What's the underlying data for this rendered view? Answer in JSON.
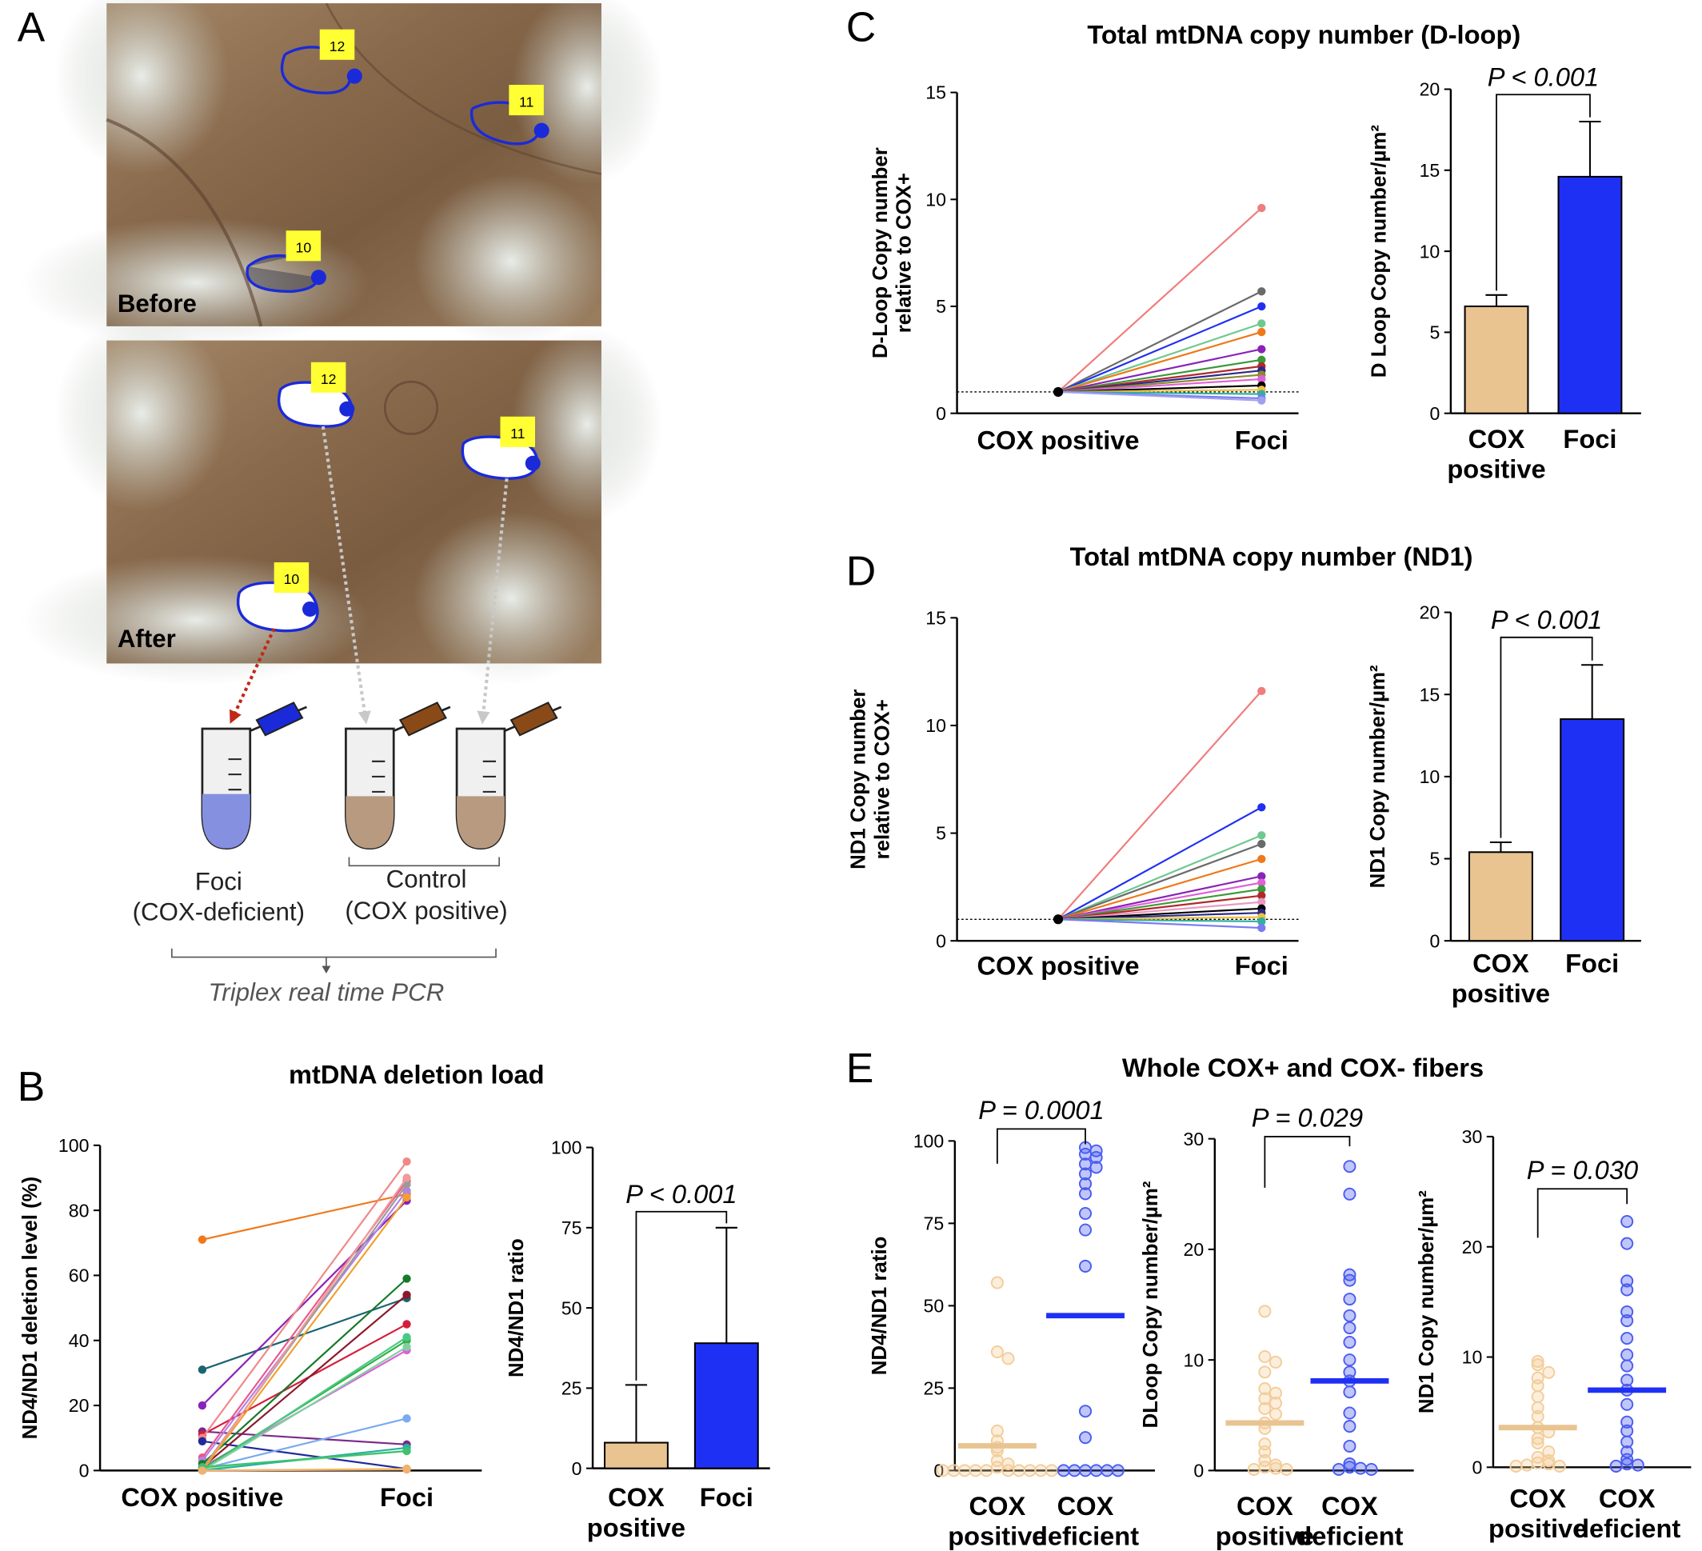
{
  "panels": {
    "A": {
      "letter": "A",
      "before": {
        "label": "Before",
        "markers": [
          "12",
          "11",
          "10"
        ]
      },
      "after": {
        "label": "After",
        "markers": [
          "12",
          "11",
          "10"
        ]
      },
      "foci_label": "Foci",
      "foci_sub": "(COX-deficient)",
      "control_label": "Control",
      "control_sub": "(COX positive)",
      "triplex_label": "Triplex real time PCR"
    },
    "B": {
      "letter": "B",
      "title": "mtDNA deletion load"
    },
    "C": {
      "letter": "C",
      "title": "Total mtDNA copy number (D-loop)"
    },
    "D": {
      "letter": "D",
      "title": "Total mtDNA copy number (ND1)"
    },
    "E": {
      "letter": "E",
      "title": "Whole COX+ and COX- fibers"
    }
  },
  "colors": {
    "cox_positive": "#e9c491",
    "foci": "#1f30f5",
    "cox_positive_dot": "#f3cd9a",
    "cox_deficient_dot": "#4a5cf0",
    "marker_yellow": "#ffff33",
    "roi_blue": "#1a2ad8",
    "arrow_red": "#c0281a",
    "arrow_grey": "#c8c8c8"
  },
  "chart_data": [
    {
      "id": "B-left",
      "type": "line",
      "ylabel": "ND4/ND1 deletion level (%)",
      "categories": [
        "COX positive",
        "Foci"
      ],
      "ylim": [
        0,
        100
      ],
      "yticks": [
        "0",
        "20",
        "40",
        "60",
        "80",
        "100"
      ],
      "pairs": [
        [
          71,
          85,
          "#f07818"
        ],
        [
          31,
          53,
          "#1a6470"
        ],
        [
          20,
          83,
          "#8a22b8"
        ],
        [
          12,
          8,
          "#7b2a8a"
        ],
        [
          11,
          45,
          "#d41e3c"
        ],
        [
          10,
          95,
          "#f08888"
        ],
        [
          9,
          0.5,
          "#1f2a9a"
        ],
        [
          4,
          89,
          "#e85a8a"
        ],
        [
          3,
          86,
          "#b482e8"
        ],
        [
          2,
          59,
          "#167a2a"
        ],
        [
          1,
          54,
          "#8a1a2a"
        ],
        [
          1,
          37,
          "#e060d8"
        ],
        [
          0.5,
          16,
          "#7aaaf0"
        ],
        [
          0.5,
          40,
          "#30b040"
        ],
        [
          0.5,
          6,
          "#a0e8a0"
        ],
        [
          0.5,
          88,
          "#9a9a9a"
        ],
        [
          0,
          90,
          "#f09a9a"
        ],
        [
          0,
          84,
          "#f0a030"
        ],
        [
          0,
          7,
          "#2ab0a0"
        ],
        [
          0,
          0.5,
          "#f0c040"
        ],
        [
          0,
          41,
          "#4ac888"
        ],
        [
          0,
          38,
          "#80d0a0"
        ],
        [
          1,
          6,
          "#40c070"
        ],
        [
          0,
          0.3,
          "#f4b070"
        ]
      ]
    },
    {
      "id": "B-right",
      "type": "bar",
      "ylabel": "ND4/ND1 ratio",
      "categories": [
        "COX positive",
        "Foci"
      ],
      "values": [
        8,
        39
      ],
      "errors": [
        26,
        75
      ],
      "ylim": [
        0,
        100
      ],
      "yticks": [
        "0",
        "25",
        "50",
        "75",
        "100"
      ],
      "pvalue": "P < 0.001"
    },
    {
      "id": "C-left",
      "type": "line",
      "ylabel": "D-Loop Copy number relative to COX+",
      "categories": [
        "COX positive",
        "Foci"
      ],
      "ylim": [
        0,
        15
      ],
      "yticks": [
        "0",
        "5",
        "10",
        "15"
      ],
      "reference": 1,
      "pairs": [
        [
          1,
          9.6,
          "#f07c7c"
        ],
        [
          1,
          5.7,
          "#6a6a6a"
        ],
        [
          1,
          5.0,
          "#2030f0"
        ],
        [
          1,
          4.2,
          "#70c890"
        ],
        [
          1,
          3.8,
          "#f07818"
        ],
        [
          1,
          3.0,
          "#8a22b8"
        ],
        [
          1,
          2.5,
          "#3a9a3a"
        ],
        [
          1,
          2.2,
          "#b02a2a"
        ],
        [
          1,
          2.0,
          "#2a2a8a"
        ],
        [
          1,
          1.8,
          "#8a8a2a"
        ],
        [
          1,
          1.6,
          "#e060d8"
        ],
        [
          1,
          1.3,
          "#000000"
        ],
        [
          1,
          1.1,
          "#f0c040"
        ],
        [
          1,
          0.9,
          "#30b0a0"
        ],
        [
          1,
          0.7,
          "#7a7af0"
        ],
        [
          1,
          0.6,
          "#a0a0f0"
        ]
      ]
    },
    {
      "id": "C-right",
      "type": "bar",
      "ylabel": "D Loop Copy number/µm²",
      "categories": [
        "COX positive",
        "Foci"
      ],
      "values": [
        6.6,
        14.6
      ],
      "errors": [
        7.3,
        18.0
      ],
      "ylim": [
        0,
        20
      ],
      "yticks": [
        "0",
        "5",
        "10",
        "15",
        "20"
      ],
      "pvalue": "P < 0.001"
    },
    {
      "id": "D-left",
      "type": "line",
      "ylabel": "ND1 Copy number relative to COX+",
      "categories": [
        "COX positive",
        "Foci"
      ],
      "ylim": [
        0,
        15
      ],
      "yticks": [
        "0",
        "5",
        "10",
        "15"
      ],
      "reference": 1,
      "pairs": [
        [
          1,
          11.6,
          "#f07c7c"
        ],
        [
          1,
          6.2,
          "#2030f0"
        ],
        [
          1,
          4.9,
          "#70c890"
        ],
        [
          1,
          4.5,
          "#6a6a6a"
        ],
        [
          1,
          3.8,
          "#f07818"
        ],
        [
          1,
          3.0,
          "#8a22b8"
        ],
        [
          1,
          2.7,
          "#e060d8"
        ],
        [
          1,
          2.4,
          "#3a9a3a"
        ],
        [
          1,
          2.1,
          "#b02a2a"
        ],
        [
          1,
          1.8,
          "#e89ac0"
        ],
        [
          1,
          1.5,
          "#000000"
        ],
        [
          1,
          1.3,
          "#2a2a8a"
        ],
        [
          1,
          1.1,
          "#f0c040"
        ],
        [
          1,
          0.9,
          "#30b0a0"
        ],
        [
          1,
          0.6,
          "#7a7af0"
        ]
      ]
    },
    {
      "id": "D-right",
      "type": "bar",
      "ylabel": "ND1 Copy number/µm²",
      "categories": [
        "COX positive",
        "Foci"
      ],
      "values": [
        5.4,
        13.5
      ],
      "errors": [
        6.0,
        16.8
      ],
      "ylim": [
        0,
        20
      ],
      "yticks": [
        "0",
        "5",
        "10",
        "15",
        "20"
      ],
      "pvalue": "P < 0.001"
    },
    {
      "id": "E-1",
      "type": "scatter",
      "ylabel": "ND4/ND1 ratio",
      "categories": [
        "COX positive",
        "COX deficient"
      ],
      "ylim": [
        0,
        100
      ],
      "yticks": [
        "0",
        "25",
        "50",
        "75",
        "100"
      ],
      "medians": [
        7.5,
        47
      ],
      "groups": [
        [
          57,
          36,
          34,
          12,
          9,
          7,
          6,
          3,
          2,
          1,
          0,
          0,
          0,
          0,
          0,
          0,
          0,
          0,
          0,
          0
        ],
        [
          98,
          97,
          96,
          95,
          93,
          92,
          90,
          87,
          84,
          78,
          73,
          62,
          18,
          10,
          0,
          0,
          0,
          0,
          0,
          0
        ]
      ],
      "pvalue": "P = 0.0001"
    },
    {
      "id": "E-2",
      "type": "scatter",
      "ylabel": "DLoop Copy number/µm²",
      "categories": [
        "COX positive",
        "COX deficient"
      ],
      "ylim": [
        0,
        30
      ],
      "yticks": [
        "0",
        "10",
        "20",
        "30"
      ],
      "medians": [
        4.3,
        8.1
      ],
      "groups": [
        [
          14.4,
          10.3,
          9.8,
          8.9,
          7.4,
          7.0,
          6.5,
          6.1,
          5.6,
          5.1,
          4.3,
          3.8,
          2.4,
          1.7,
          0.9,
          0.5,
          0.3,
          0.2,
          0.1,
          0.1
        ],
        [
          27.5,
          25.0,
          17.7,
          17.2,
          15.5,
          14.0,
          12.9,
          11.6,
          10.0,
          8.9,
          8.1,
          7.1,
          5.2,
          4.0,
          2.2,
          0.6,
          0.3,
          0.2,
          0.1,
          0.1
        ]
      ],
      "pvalue": "P = 0.029"
    },
    {
      "id": "E-3",
      "type": "scatter",
      "ylabel": "ND1 Copy number/µm²",
      "categories": [
        "COX positive",
        "COX deficient"
      ],
      "ylim": [
        0,
        30
      ],
      "yticks": [
        "0",
        "10",
        "20",
        "30"
      ],
      "medians": [
        3.6,
        7.0
      ],
      "groups": [
        [
          9.6,
          9.3,
          8.6,
          8.1,
          7.4,
          6.4,
          5.4,
          4.6,
          3.6,
          3.2,
          2.6,
          2.2,
          1.4,
          0.9,
          0.6,
          0.4,
          0.3,
          0.2,
          0.1,
          0.1
        ],
        [
          22.3,
          20.3,
          16.9,
          16.1,
          14.1,
          13.3,
          11.7,
          10.2,
          9.2,
          7.9,
          7.0,
          5.7,
          4.1,
          3.3,
          2.3,
          1.4,
          0.7,
          0.3,
          0.2,
          0.1
        ]
      ],
      "pvalue": "P = 0.030"
    }
  ]
}
